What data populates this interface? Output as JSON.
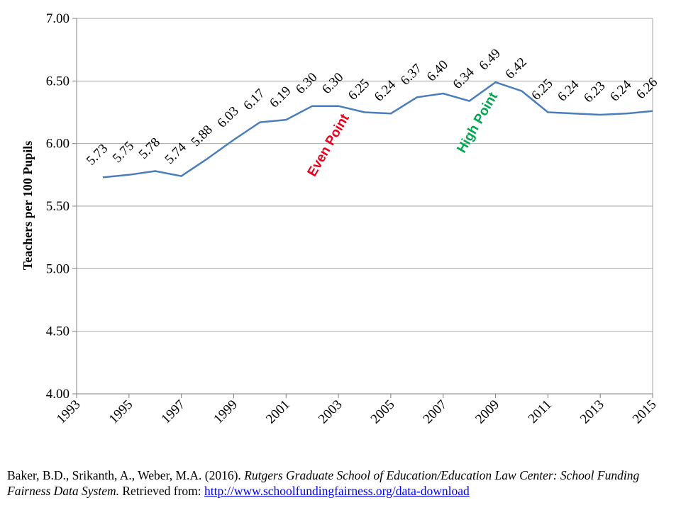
{
  "chart_data": {
    "type": "line",
    "title": "",
    "xlabel": "",
    "ylabel": "Teachers per 100 Pupils",
    "ylim": [
      4.0,
      7.0
    ],
    "xlim": [
      1993,
      2015
    ],
    "grid": true,
    "y_ticks": [
      "4.00",
      "4.50",
      "5.00",
      "5.50",
      "6.00",
      "6.50",
      "7.00"
    ],
    "x_ticks": [
      "1993",
      "1995",
      "1997",
      "1999",
      "2001",
      "2003",
      "2005",
      "2007",
      "2009",
      "2011",
      "2013",
      "2015"
    ],
    "series": [
      {
        "name": "Teachers per 100 Pupils",
        "color": "#4a7ebb",
        "x": [
          1994,
          1995,
          1996,
          1997,
          1998,
          1999,
          2000,
          2001,
          2002,
          2003,
          2004,
          2005,
          2006,
          2007,
          2008,
          2009,
          2010,
          2011,
          2012,
          2013,
          2014,
          2015
        ],
        "values": [
          5.73,
          5.75,
          5.78,
          5.74,
          5.88,
          6.03,
          6.17,
          6.19,
          6.3,
          6.3,
          6.25,
          6.24,
          6.37,
          6.4,
          6.34,
          6.49,
          6.42,
          6.25,
          6.24,
          6.23,
          6.24,
          6.26
        ],
        "labels": [
          "5.73",
          "5.75",
          "5.78",
          "5.74",
          "5.88",
          "6.03",
          "6.17",
          "6.19",
          "6.30",
          "6.30",
          "6.25",
          "6.24",
          "6.37",
          "6.40",
          "6.34",
          "6.49",
          "6.42",
          "6.25",
          "6.24",
          "6.23",
          "6.24",
          "6.26"
        ]
      }
    ],
    "annotations": [
      {
        "text": "Even Point",
        "color": "#e8001c"
      },
      {
        "text": "High Point",
        "color": "#00a651"
      }
    ]
  },
  "citation": {
    "authors": "Baker, B.D., Srikanth, A., Weber, M.A. (2016).",
    "title_italic": "Rutgers Graduate School of Education/Education Law Center: School Funding Fairness Data System.",
    "retrieved": "Retrieved from:",
    "link": "http://www.schoolfundingfairness.org/data-download"
  }
}
